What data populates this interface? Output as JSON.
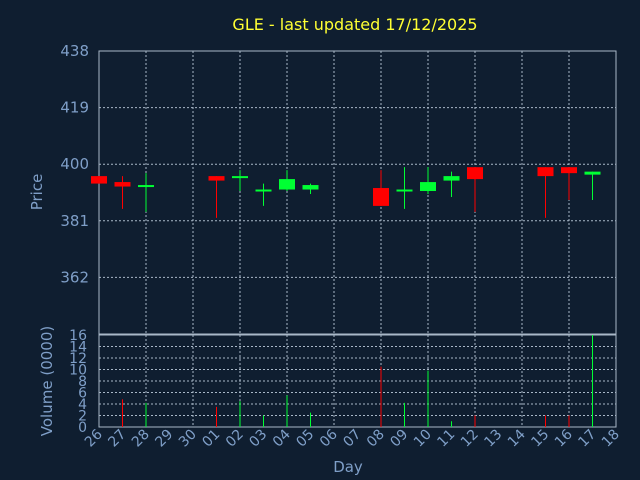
{
  "chart_data": {
    "type": "candlestick",
    "title": "GLE - last updated 17/12/2025",
    "xlabel": "Day",
    "ylabel": "Price",
    "volume_label": "Volume (0000)",
    "x_ticks": [
      "26",
      "27",
      "28",
      "29",
      "30",
      "01",
      "02",
      "03",
      "04",
      "05",
      "06",
      "07",
      "08",
      "09",
      "10",
      "11",
      "12",
      "13",
      "14",
      "15",
      "16",
      "17",
      "18"
    ],
    "price_ticks": [
      438,
      419,
      400,
      381,
      362
    ],
    "price_range": [
      343,
      438
    ],
    "volume_ticks": [
      0,
      2,
      4,
      6,
      8,
      10,
      12,
      14,
      16
    ],
    "volume_range": [
      0,
      16
    ],
    "grid": true,
    "colors": {
      "background": "#0f1e30",
      "up": "#00ff33",
      "down": "#ff0000",
      "grid": "#a9b8c8",
      "text": "#7f9fc8",
      "title": "#ffff33"
    },
    "candles": [
      {
        "day": "26",
        "open": 396,
        "close": 393.5,
        "high": 396,
        "low": 393.5,
        "volume": 0
      },
      {
        "day": "27",
        "open": 394,
        "close": 392.5,
        "high": 396,
        "low": 385,
        "volume": 4.8
      },
      {
        "day": "28",
        "open": 392.5,
        "close": 393,
        "high": 397,
        "low": 384,
        "volume": 4.2
      },
      {
        "day": "01",
        "open": 396,
        "close": 394.5,
        "high": 396,
        "low": 382,
        "volume": 3.5
      },
      {
        "day": "02",
        "open": 395.5,
        "close": 396,
        "high": 398,
        "low": 391,
        "volume": 4.5
      },
      {
        "day": "03",
        "open": 391,
        "close": 391.5,
        "high": 393.5,
        "low": 386,
        "volume": 2.0
      },
      {
        "day": "04",
        "open": 391.5,
        "close": 395,
        "high": 398,
        "low": 391,
        "volume": 5.5
      },
      {
        "day": "05",
        "open": 391.5,
        "close": 393,
        "high": 393.5,
        "low": 390,
        "volume": 2.5
      },
      {
        "day": "08",
        "open": 392,
        "close": 386,
        "high": 398,
        "low": 386,
        "volume": 10.5
      },
      {
        "day": "09",
        "open": 391,
        "close": 391.5,
        "high": 399,
        "low": 385,
        "volume": 4.2
      },
      {
        "day": "10",
        "open": 391,
        "close": 394,
        "high": 399,
        "low": 390,
        "volume": 9.8
      },
      {
        "day": "11",
        "open": 394.5,
        "close": 396,
        "high": 397.5,
        "low": 389,
        "volume": 1.0
      },
      {
        "day": "12",
        "open": 399,
        "close": 395,
        "high": 399,
        "low": 384,
        "volume": 2.0
      },
      {
        "day": "15",
        "open": 399,
        "close": 396,
        "high": 399,
        "low": 382,
        "volume": 2.0
      },
      {
        "day": "16",
        "open": 399,
        "close": 397,
        "high": 399,
        "low": 388,
        "volume": 2.0
      },
      {
        "day": "17",
        "open": 396.5,
        "close": 397.5,
        "high": 397.5,
        "low": 388,
        "volume": 16.0
      }
    ]
  }
}
